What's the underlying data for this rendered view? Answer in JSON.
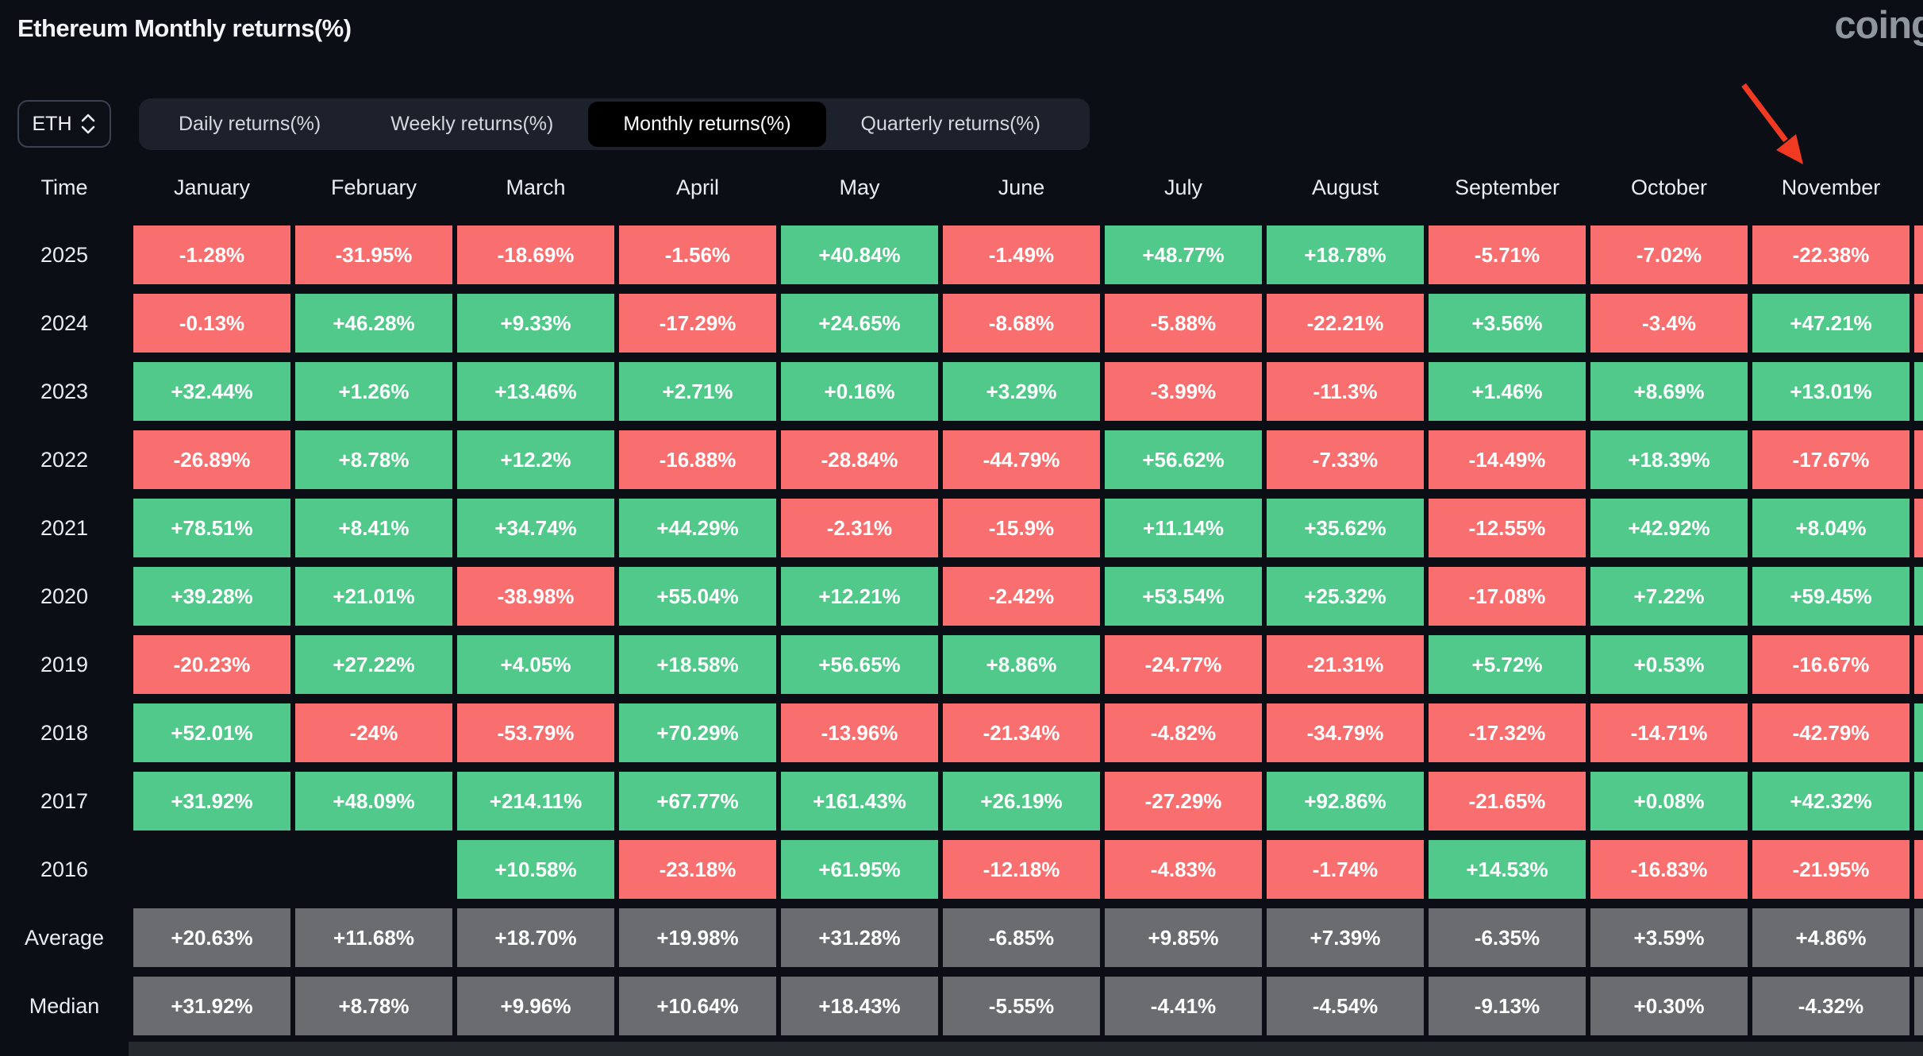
{
  "header": {
    "title": "Ethereum Monthly returns(%)",
    "logo_text": "coing"
  },
  "controls": {
    "symbol_select": {
      "label": "ETH"
    },
    "tabs": [
      {
        "label": "Daily returns(%)",
        "active": false
      },
      {
        "label": "Weekly returns(%)",
        "active": false
      },
      {
        "label": "Monthly returns(%)",
        "active": true
      },
      {
        "label": "Quarterly returns(%)",
        "active": false
      }
    ]
  },
  "colors": {
    "positive": "#50C98A",
    "negative": "#F96E6E",
    "summary": "#6A6C70",
    "empty": "transparent",
    "arrow": "#F23A22"
  },
  "annotation": {
    "type": "arrow",
    "points_at": "November"
  },
  "table": {
    "corner_label": "Time",
    "months": [
      "January",
      "February",
      "March",
      "April",
      "May",
      "June",
      "July",
      "August",
      "September",
      "October",
      "November"
    ],
    "rows": [
      {
        "label": "2025",
        "summary": false,
        "sliver": "negative",
        "values": [
          "-1.28%",
          "-31.95%",
          "-18.69%",
          "-1.56%",
          "+40.84%",
          "-1.49%",
          "+48.77%",
          "+18.78%",
          "-5.71%",
          "-7.02%",
          "-22.38%"
        ]
      },
      {
        "label": "2024",
        "summary": false,
        "sliver": "negative",
        "values": [
          "-0.13%",
          "+46.28%",
          "+9.33%",
          "-17.29%",
          "+24.65%",
          "-8.68%",
          "-5.88%",
          "-22.21%",
          "+3.56%",
          "-3.4%",
          "+47.21%"
        ]
      },
      {
        "label": "2023",
        "summary": false,
        "sliver": "positive",
        "values": [
          "+32.44%",
          "+1.26%",
          "+13.46%",
          "+2.71%",
          "+0.16%",
          "+3.29%",
          "-3.99%",
          "-11.3%",
          "+1.46%",
          "+8.69%",
          "+13.01%"
        ]
      },
      {
        "label": "2022",
        "summary": false,
        "sliver": "negative",
        "values": [
          "-26.89%",
          "+8.78%",
          "+12.2%",
          "-16.88%",
          "-28.84%",
          "-44.79%",
          "+56.62%",
          "-7.33%",
          "-14.49%",
          "+18.39%",
          "-17.67%"
        ]
      },
      {
        "label": "2021",
        "summary": false,
        "sliver": "negative",
        "values": [
          "+78.51%",
          "+8.41%",
          "+34.74%",
          "+44.29%",
          "-2.31%",
          "-15.9%",
          "+11.14%",
          "+35.62%",
          "-12.55%",
          "+42.92%",
          "+8.04%"
        ]
      },
      {
        "label": "2020",
        "summary": false,
        "sliver": "positive",
        "values": [
          "+39.28%",
          "+21.01%",
          "-38.98%",
          "+55.04%",
          "+12.21%",
          "-2.42%",
          "+53.54%",
          "+25.32%",
          "-17.08%",
          "+7.22%",
          "+59.45%"
        ]
      },
      {
        "label": "2019",
        "summary": false,
        "sliver": "negative",
        "values": [
          "-20.23%",
          "+27.22%",
          "+4.05%",
          "+18.58%",
          "+56.65%",
          "+8.86%",
          "-24.77%",
          "-21.31%",
          "+5.72%",
          "+0.53%",
          "-16.67%"
        ]
      },
      {
        "label": "2018",
        "summary": false,
        "sliver": "positive",
        "values": [
          "+52.01%",
          "-24%",
          "-53.79%",
          "+70.29%",
          "-13.96%",
          "-21.34%",
          "-4.82%",
          "-34.79%",
          "-17.32%",
          "-14.71%",
          "-42.79%"
        ]
      },
      {
        "label": "2017",
        "summary": false,
        "sliver": "positive",
        "values": [
          "+31.92%",
          "+48.09%",
          "+214.11%",
          "+67.77%",
          "+161.43%",
          "+26.19%",
          "-27.29%",
          "+92.86%",
          "-21.65%",
          "+0.08%",
          "+42.32%"
        ]
      },
      {
        "label": "2016",
        "summary": false,
        "sliver": "negative",
        "values": [
          "",
          "",
          "+10.58%",
          "-23.18%",
          "+61.95%",
          "-12.18%",
          "-4.83%",
          "-1.74%",
          "+14.53%",
          "-16.83%",
          "-21.95%"
        ]
      },
      {
        "label": "Average",
        "summary": true,
        "sliver": "summary",
        "values": [
          "+20.63%",
          "+11.68%",
          "+18.70%",
          "+19.98%",
          "+31.28%",
          "-6.85%",
          "+9.85%",
          "+7.39%",
          "-6.35%",
          "+3.59%",
          "+4.86%"
        ]
      },
      {
        "label": "Median",
        "summary": true,
        "sliver": "summary",
        "values": [
          "+31.92%",
          "+8.78%",
          "+9.96%",
          "+10.64%",
          "+18.43%",
          "-5.55%",
          "-4.41%",
          "-4.54%",
          "-9.13%",
          "+0.30%",
          "-4.32%"
        ]
      }
    ]
  }
}
